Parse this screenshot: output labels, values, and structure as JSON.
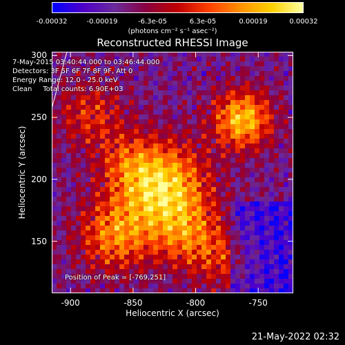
{
  "colorbar": {
    "ticks": [
      "-0.00032",
      "-0.00019",
      "-6.3e-05",
      "6.3e-05",
      "0.00019",
      "0.00032"
    ],
    "unit": "(photons cm⁻² s⁻¹ asec⁻²)"
  },
  "timestamp": "21-May-2022 02:32",
  "chart_data": {
    "type": "heatmap",
    "title": "Reconstructed RHESSI Image",
    "xlabel": "Heliocentric X (arcsec)",
    "ylabel": "Heliocentric Y (arcsec)",
    "xlim": [
      -915,
      -722
    ],
    "ylim": [
      108,
      303
    ],
    "xticks": [
      "-900",
      "-850",
      "-800",
      "-750"
    ],
    "yticks": [
      "150",
      "200",
      "250",
      "300"
    ],
    "annotations": {
      "time_range": "7-May-2015 03:40:44.000 to 03:46:44.000",
      "detectors": "Detectors: 3F 5F 6F 7F 8F 9F, Att 0",
      "energy": "Energy Range: 12.0 - 25.0 keV",
      "method": "Clean     Total counts: 6.90E+03",
      "peak": "Position of Peak = [-769,251]"
    },
    "peak_position": [
      -769,
      251
    ],
    "colorscale": [
      "#0000ff",
      "#5000c8",
      "#6a2a9a",
      "#8a0040",
      "#c00000",
      "#ff4000",
      "#ff9000",
      "#ffd000",
      "#ffffa0"
    ]
  }
}
